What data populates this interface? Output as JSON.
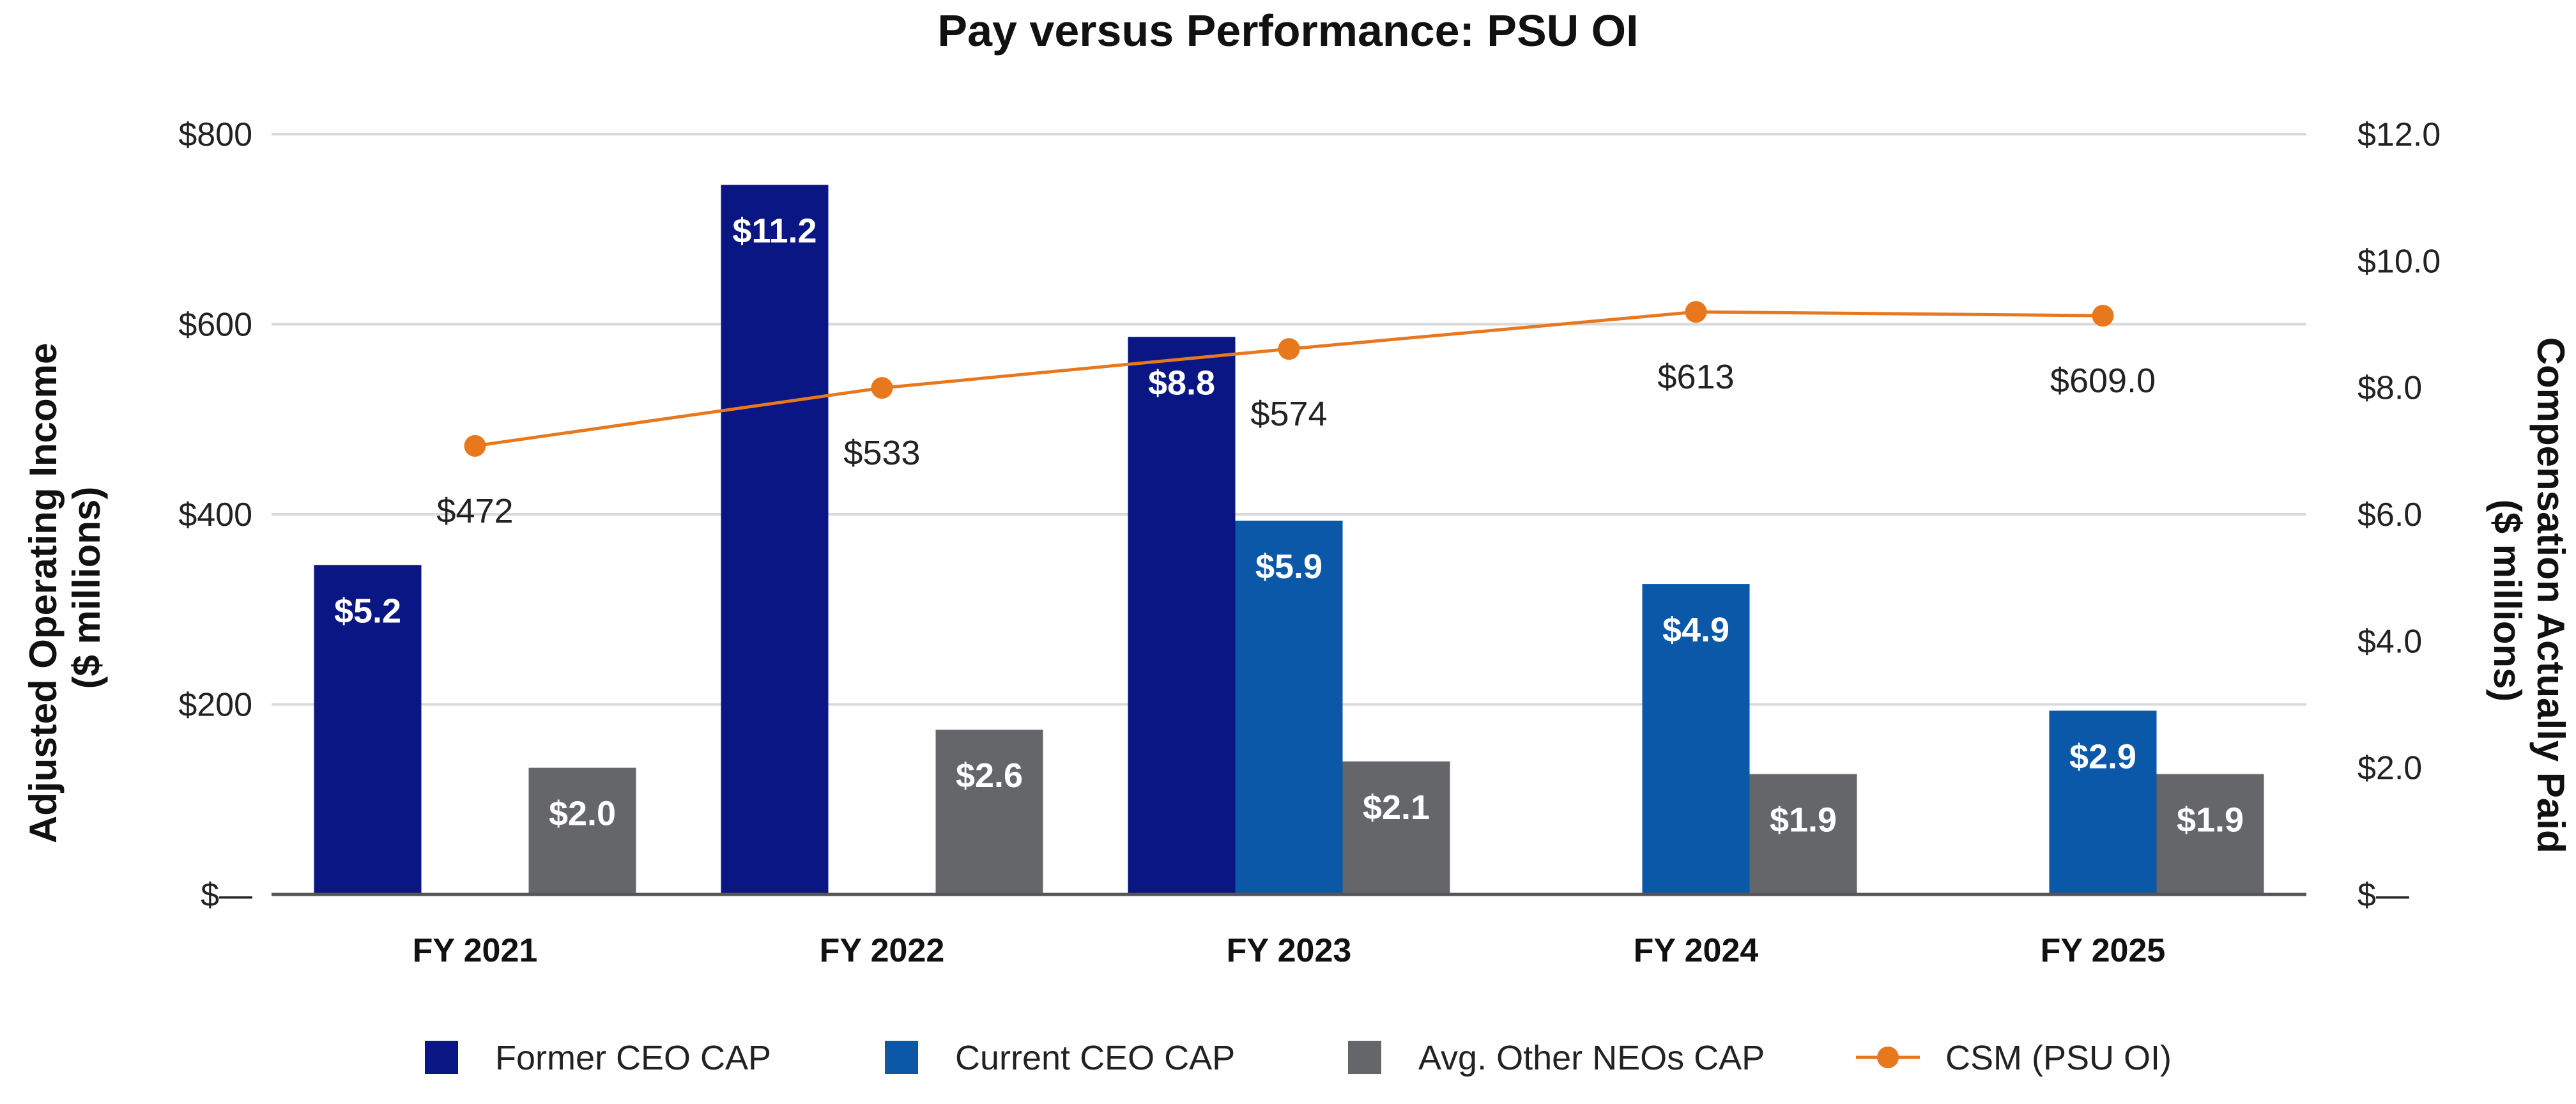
{
  "chart_data": {
    "type": "bar",
    "title": "Pay versus Performance: PSU OI",
    "categories": [
      "FY 2021",
      "FY 2022",
      "FY 2023",
      "FY 2024",
      "FY 2025"
    ],
    "y_left": {
      "label_line1": "Adjusted Operating Income",
      "label_line2": "($ millions)",
      "range": [
        0,
        800
      ],
      "ticks": [
        0,
        200,
        400,
        600,
        800
      ],
      "tick_labels": [
        "$—",
        "$200",
        "$400",
        "$600",
        "$800"
      ]
    },
    "y_right": {
      "label_line1": "Compensation Actually Paid",
      "label_line2": "($ millions)",
      "range": [
        0,
        12
      ],
      "ticks": [
        0,
        2,
        4,
        6,
        8,
        10,
        12
      ],
      "tick_labels": [
        "$—",
        "$2.0",
        "$4.0",
        "$6.0",
        "$8.0",
        "$10.0",
        "$12.0"
      ]
    },
    "bar_series": [
      {
        "name": "Former CEO CAP",
        "color": "#0a1683",
        "values": [
          5.2,
          11.2,
          8.8,
          null,
          null
        ],
        "labels": [
          "$5.2",
          "$11.2",
          "$8.8",
          "",
          ""
        ]
      },
      {
        "name": "Current CEO CAP",
        "color": "#0b57a8",
        "values": [
          null,
          null,
          5.9,
          4.9,
          2.9
        ],
        "labels": [
          "",
          "",
          "$5.9",
          "$4.9",
          "$2.9"
        ]
      },
      {
        "name": "Avg. Other NEOs CAP",
        "color": "#646669",
        "values": [
          2.0,
          2.6,
          2.1,
          1.9,
          1.9
        ],
        "labels": [
          "$2.0",
          "$2.6",
          "$2.1",
          "$1.9",
          "$1.9"
        ]
      }
    ],
    "line_series": {
      "name": "CSM (PSU OI)",
      "color": "#e8781e",
      "values": [
        472,
        533,
        574,
        613,
        609
      ],
      "labels": [
        "$472",
        "$533",
        "$574",
        "$613",
        "$609.0"
      ]
    },
    "legend": [
      "Former CEO CAP",
      "Current CEO CAP",
      "Avg. Other NEOs CAP",
      "CSM (PSU OI)"
    ],
    "legend_position": "bottom",
    "grid": true
  }
}
